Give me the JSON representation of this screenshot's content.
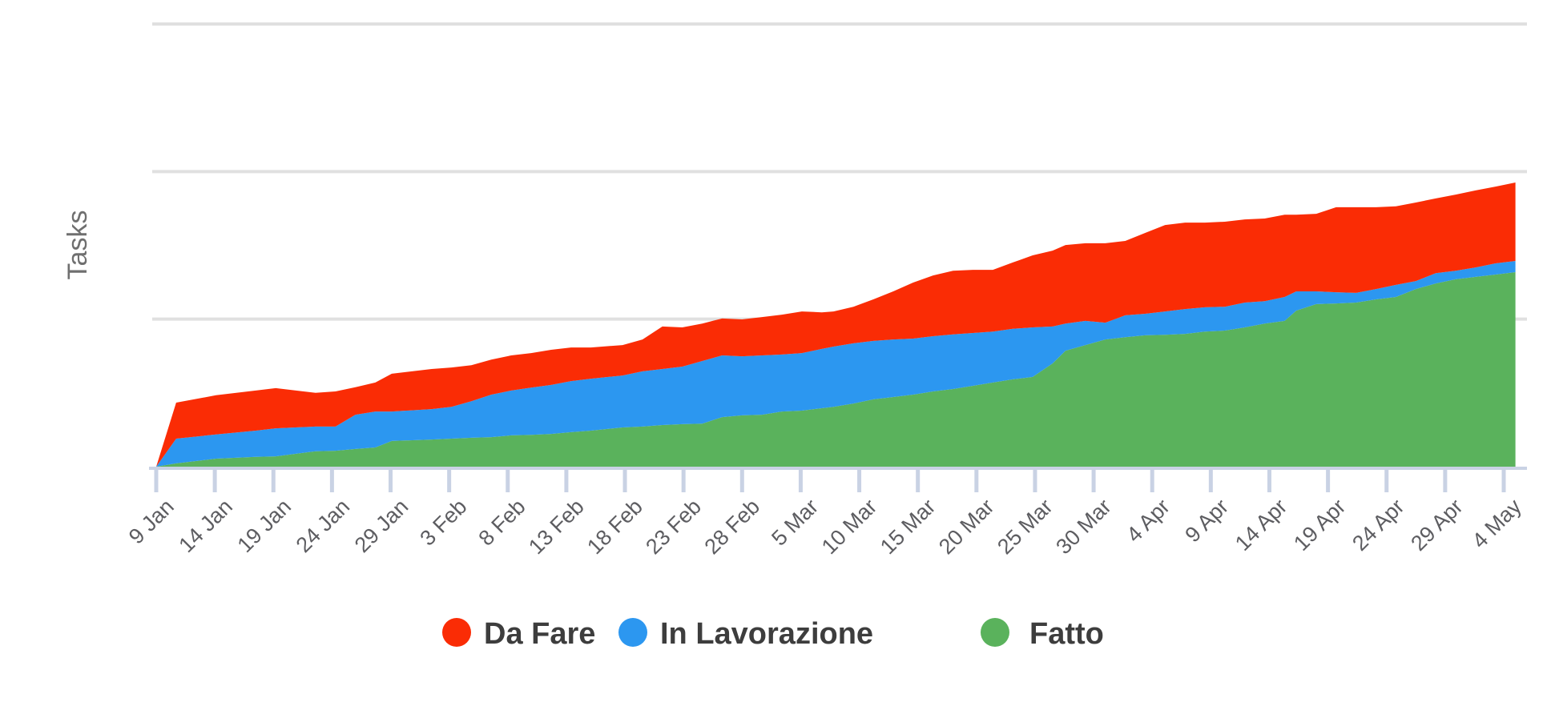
{
  "y_axis_label": "Tasks",
  "legend": [
    {
      "label": "Da Fare",
      "color": "#fa2c05"
    },
    {
      "label": "In Lavorazione",
      "color": "#2c97f0"
    },
    {
      "label": "Fatto",
      "color": "#5ab25c"
    }
  ],
  "colors": {
    "red": "#fa2c05",
    "blue": "#2c97f0",
    "green": "#5ab25c",
    "gridline": "#e0e0e0",
    "axis": "#c9d2e4",
    "tick_label": "#5d5d61",
    "y_axis_label": "#6f6f6f",
    "legend_text": "#3d3d3d"
  },
  "chart_data": {
    "type": "area",
    "stacked": true,
    "title": "",
    "xlabel": "",
    "ylabel": "Tasks",
    "ylim": [
      0,
      150
    ],
    "y_gridlines": [
      50,
      100,
      150
    ],
    "grid": true,
    "legend_position": "bottom",
    "x_tick_labels": [
      "9 Jan",
      "14 Jan",
      "19 Jan",
      "24 Jan",
      "29 Jan",
      "3 Feb",
      "8 Feb",
      "13 Feb",
      "18 Feb",
      "23 Feb",
      "28 Feb",
      "5 Mar",
      "10 Mar",
      "15 Mar",
      "20 Mar",
      "25 Mar",
      "30 Mar",
      "4 Apr",
      "9 Apr",
      "14 Apr",
      "19 Apr",
      "24 Apr",
      "29 Apr",
      "4 May"
    ],
    "x_tick_days": [
      0,
      5,
      10,
      15,
      20,
      25,
      30,
      35,
      40,
      45,
      50,
      55,
      60,
      65,
      70,
      75,
      80,
      85,
      90,
      95,
      100,
      105,
      110,
      115
    ],
    "points_days": [
      0,
      1.7,
      5.1,
      8.5,
      10.2,
      13.6,
      15.3,
      17,
      18.7,
      20.1,
      23.5,
      25.2,
      26.9,
      28.6,
      30.3,
      32,
      33.7,
      35.4,
      37.1,
      39.8,
      41.5,
      43.2,
      44.9,
      46.6,
      48.3,
      50,
      51.7,
      53.4,
      55.1,
      56.8,
      57.8,
      59.5,
      61.2,
      62.9,
      64.6,
      66.3,
      68,
      69.7,
      71.4,
      73.1,
      74.8,
      76.5,
      77.6,
      79.3,
      81,
      82.7,
      84.4,
      86.1,
      87.8,
      89.5,
      91.2,
      92.9,
      94.6,
      96.3,
      97.3,
      99,
      100.7,
      102.4,
      104.1,
      105.8,
      107.5,
      109.2,
      110.9,
      112.6,
      114.3,
      116
    ],
    "series": [
      {
        "name": "Fatto",
        "color": "#5ab25c",
        "values": [
          0,
          1.1,
          2.7,
          3.3,
          3.5,
          5.2,
          5.4,
          6.0,
          6.5,
          8.7,
          9.2,
          9.5,
          9.8,
          10.0,
          10.6,
          10.8,
          11.1,
          11.7,
          12.2,
          13.3,
          13.6,
          14.1,
          14.4,
          14.6,
          16.8,
          17.4,
          17.6,
          18.7,
          19.0,
          19.8,
          20.3,
          21.4,
          22.8,
          23.6,
          24.4,
          25.5,
          26.3,
          27.4,
          28.5,
          29.6,
          30.4,
          35.0,
          39.3,
          41.2,
          43.1,
          43.9,
          44.5,
          44.7,
          45.0,
          45.8,
          46.1,
          47.2,
          48.5,
          49.4,
          52.9,
          55.1,
          55.3,
          55.6,
          56.7,
          57.5,
          60.2,
          62.1,
          63.5,
          64.3,
          65.1,
          65.9
        ]
      },
      {
        "name": "In Lavorazione",
        "color": "#2c97f0",
        "values": [
          0,
          8.4,
          8.2,
          8.9,
          9.5,
          8.4,
          8.2,
          11.6,
          12.2,
          10.0,
          10.3,
          10.8,
          12.4,
          14.4,
          15.2,
          16.0,
          16.6,
          17.3,
          17.6,
          17.6,
          18.7,
          19.0,
          19.5,
          21.2,
          20.9,
          20.0,
          20.1,
          19.3,
          19.5,
          20.1,
          20.4,
          20.4,
          19.8,
          19.5,
          19.0,
          18.7,
          18.5,
          17.9,
          17.3,
          17.1,
          16.8,
          12.5,
          9.2,
          8.2,
          5.7,
          7.4,
          7.3,
          7.9,
          8.4,
          8.2,
          8.1,
          8.4,
          7.6,
          8.1,
          6.5,
          4.3,
          3.8,
          3.3,
          3.5,
          4.1,
          2.7,
          3.5,
          2.9,
          3.2,
          3.8,
          3.8
        ]
      },
      {
        "name": "Da Fare",
        "color": "#fa2c05",
        "values": [
          0,
          12.2,
          13.3,
          13.6,
          13.6,
          11.4,
          11.9,
          9.3,
          9.8,
          12.8,
          13.6,
          13.3,
          12.2,
          11.9,
          11.9,
          11.7,
          11.9,
          11.4,
          10.6,
          10.3,
          10.8,
          14.4,
          13.3,
          12.7,
          12.5,
          12.5,
          13.0,
          13.5,
          14.1,
          12.4,
          11.9,
          12.4,
          14.1,
          16.3,
          19.0,
          20.6,
          21.6,
          21.4,
          20.9,
          22.5,
          24.4,
          25.7,
          26.6,
          26.3,
          26.9,
          25.2,
          27.4,
          29.3,
          29.3,
          28.7,
          28.8,
          28.2,
          28.0,
          27.9,
          26.0,
          26.3,
          28.8,
          29.0,
          27.7,
          26.6,
          26.6,
          25.3,
          25.8,
          26.1,
          26.0,
          26.6
        ]
      }
    ]
  }
}
